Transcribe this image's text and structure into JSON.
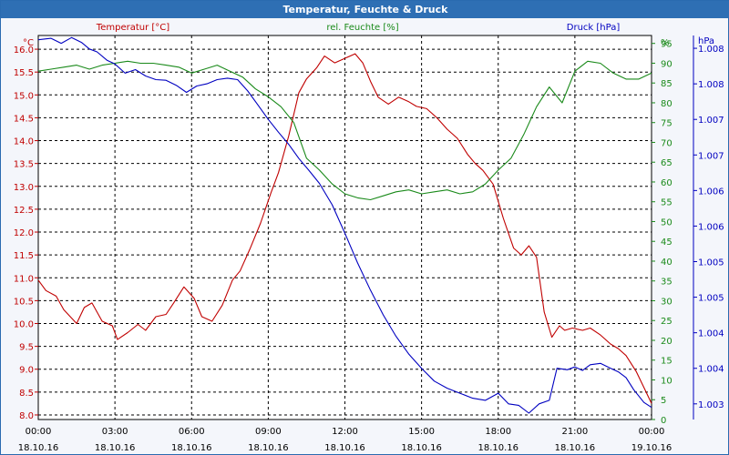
{
  "title": "Temperatur, Feuchte & Druck",
  "colors": {
    "temperature": "#c00000",
    "humidity": "#1a8a1a",
    "pressure": "#0000c0",
    "grid": "#000000",
    "title_bg": "#2e6fb4"
  },
  "chart_data": {
    "type": "line",
    "grid": true,
    "x_ticks": [
      {
        "time": "00:00",
        "date": "18.10.16"
      },
      {
        "time": "03:00",
        "date": "18.10.16"
      },
      {
        "time": "06:00",
        "date": "18.10.16"
      },
      {
        "time": "09:00",
        "date": "18.10.16"
      },
      {
        "time": "12:00",
        "date": "18.10.16"
      },
      {
        "time": "15:00",
        "date": "18.10.16"
      },
      {
        "time": "18:00",
        "date": "18.10.16"
      },
      {
        "time": "21:00",
        "date": "18.10.16"
      },
      {
        "time": "00:00",
        "date": "19.10.16"
      }
    ],
    "x_range_hours": [
      0,
      24
    ],
    "axes": {
      "temperature": {
        "label": "Temperatur [°C]",
        "unit": "°C",
        "range": [
          7.9,
          16.3
        ],
        "ticks": [
          "8.0",
          "8.5",
          "9.0",
          "9.5",
          "10.0",
          "10.5",
          "11.0",
          "11.5",
          "12.0",
          "12.5",
          "13.0",
          "13.5",
          "14.0",
          "14.5",
          "15.0",
          "15.5",
          "16.0"
        ]
      },
      "humidity": {
        "label": "rel. Feuchte [%]",
        "unit": "%",
        "range": [
          0,
          97
        ],
        "ticks": [
          "0",
          "5",
          "10",
          "15",
          "20",
          "25",
          "30",
          "35",
          "40",
          "45",
          "50",
          "55",
          "60",
          "65",
          "70",
          "75",
          "80",
          "85",
          "90",
          "95"
        ]
      },
      "pressure": {
        "label": "Druck [hPa]",
        "unit": "hPa",
        "range": [
          1.00278,
          1.00818
        ],
        "ticks": [
          "1.003",
          "1.004",
          "1.004",
          "1.005",
          "1.005",
          "1.006",
          "1.006",
          "1.007",
          "1.007",
          "1.008",
          "1.008"
        ]
      }
    },
    "series": [
      {
        "name": "Temperatur [°C]",
        "axis": "temperature",
        "x": [
          0,
          0.3,
          0.7,
          1.0,
          1.5,
          1.8,
          2.1,
          2.5,
          2.9,
          3.1,
          3.5,
          3.9,
          4.2,
          4.6,
          5.0,
          5.3,
          5.7,
          6.1,
          6.4,
          6.8,
          7.2,
          7.6,
          7.9,
          8.3,
          8.7,
          9.1,
          9.4,
          9.8,
          10.2,
          10.5,
          10.9,
          11.2,
          11.6,
          12.0,
          12.4,
          12.7,
          13.0,
          13.3,
          13.7,
          14.1,
          14.5,
          14.8,
          15.2,
          15.6,
          16.0,
          16.4,
          16.8,
          17.1,
          17.4,
          17.8,
          18.2,
          18.6,
          18.9,
          19.2,
          19.5,
          19.8,
          20.1,
          20.4,
          20.6,
          20.9,
          21.3,
          21.6,
          22.0,
          22.4,
          22.7,
          23.0,
          23.4,
          23.7,
          24.0
        ],
        "y": [
          10.95,
          10.72,
          10.6,
          10.3,
          10.0,
          10.35,
          10.45,
          10.05,
          9.95,
          9.65,
          9.8,
          9.98,
          9.85,
          10.15,
          10.2,
          10.45,
          10.8,
          10.55,
          10.15,
          10.05,
          10.4,
          10.95,
          11.15,
          11.65,
          12.2,
          12.85,
          13.3,
          14.1,
          15.05,
          15.35,
          15.6,
          15.85,
          15.7,
          15.8,
          15.9,
          15.7,
          15.3,
          14.95,
          14.8,
          14.95,
          14.85,
          14.75,
          14.7,
          14.5,
          14.25,
          14.05,
          13.7,
          13.5,
          13.35,
          13.05,
          12.3,
          11.65,
          11.5,
          11.7,
          11.45,
          10.25,
          9.7,
          9.95,
          9.85,
          9.9,
          9.85,
          9.9,
          9.75,
          9.55,
          9.45,
          9.3,
          8.95,
          8.6,
          8.25
        ]
      },
      {
        "name": "rel. Feuchte [%]",
        "axis": "humidity",
        "x": [
          0,
          0.5,
          1.0,
          1.5,
          2.0,
          2.5,
          3.0,
          3.5,
          4.0,
          4.5,
          5.0,
          5.5,
          6.0,
          6.5,
          7.0,
          7.5,
          8.0,
          8.5,
          9.0,
          9.5,
          10.0,
          10.5,
          11.0,
          11.5,
          12.0,
          12.5,
          13.0,
          13.5,
          14.0,
          14.5,
          15.0,
          15.5,
          16.0,
          16.5,
          17.0,
          17.5,
          18.0,
          18.5,
          19.0,
          19.5,
          20.0,
          20.5,
          21.0,
          21.5,
          22.0,
          22.5,
          23.0,
          23.5,
          24.0
        ],
        "y": [
          88,
          88.5,
          89,
          89.5,
          88.5,
          89.5,
          90,
          90.5,
          90,
          90,
          89.5,
          89,
          87.5,
          88.5,
          89.5,
          88,
          86.5,
          83.5,
          81.5,
          79,
          75,
          66,
          63,
          59.5,
          57,
          56,
          55.5,
          56.5,
          57.5,
          58,
          57,
          57.5,
          58,
          57,
          57.5,
          59.5,
          63,
          66,
          72,
          79,
          84,
          80,
          88,
          90.5,
          90,
          87.5,
          86,
          86,
          87.5
        ]
      },
      {
        "name": "Druck [hPa]",
        "axis": "pressure",
        "x": [
          0,
          0.5,
          0.9,
          1.3,
          1.7,
          2.0,
          2.3,
          2.7,
          3.0,
          3.4,
          3.8,
          4.2,
          4.6,
          5.0,
          5.4,
          5.8,
          6.2,
          6.6,
          7.0,
          7.4,
          7.8,
          8.2,
          8.6,
          9.0,
          9.4,
          9.8,
          10.2,
          10.6,
          11.0,
          11.5,
          12.0,
          12.5,
          13.0,
          13.5,
          14.0,
          14.5,
          15.0,
          15.5,
          16.0,
          16.5,
          17.0,
          17.5,
          18.0,
          18.4,
          18.8,
          19.2,
          19.6,
          20.0,
          20.3,
          20.7,
          21.0,
          21.3,
          21.6,
          22.0,
          22.4,
          22.7,
          23.0,
          23.3,
          23.7,
          24.0
        ],
        "y": [
          1.00812,
          1.00814,
          1.00807,
          1.00815,
          1.00808,
          1.00799,
          1.00795,
          1.00783,
          1.00778,
          1.00765,
          1.0077,
          1.00761,
          1.00756,
          1.00755,
          1.00748,
          1.00738,
          1.00747,
          1.0075,
          1.00756,
          1.00758,
          1.00756,
          1.0074,
          1.0072,
          1.007,
          1.00682,
          1.00665,
          1.00645,
          1.00628,
          1.0061,
          1.0058,
          1.0054,
          1.00498,
          1.0046,
          1.00425,
          1.00395,
          1.0037,
          1.0035,
          1.00332,
          1.00322,
          1.00315,
          1.00308,
          1.00305,
          1.00315,
          1.003,
          1.00298,
          1.00287,
          1.003,
          1.00305,
          1.0035,
          1.00348,
          1.00352,
          1.00347,
          1.00355,
          1.00357,
          1.0035,
          1.00345,
          1.00337,
          1.0032,
          1.00302,
          1.00295
        ]
      }
    ]
  }
}
